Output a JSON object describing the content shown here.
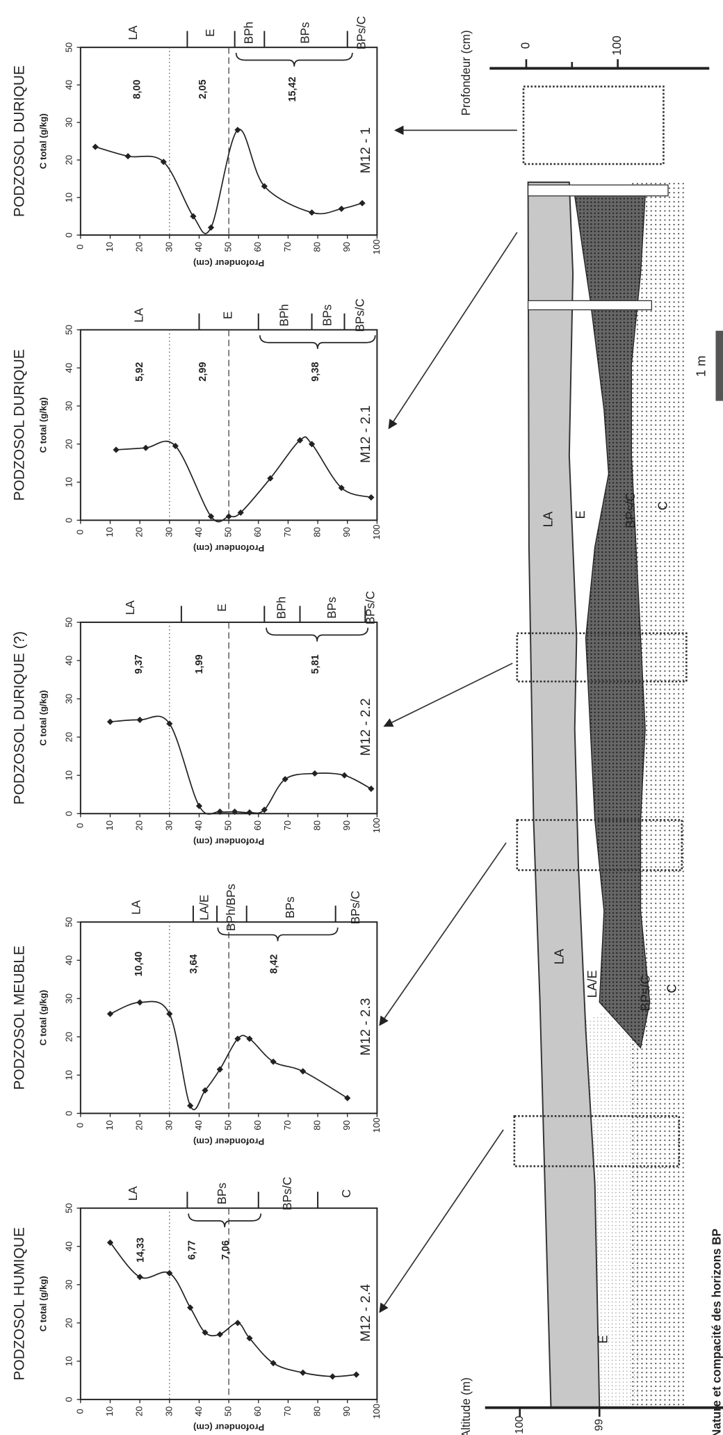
{
  "chart_data": [
    {
      "type": "line",
      "title": "PODZOSOL DURIQUE",
      "annotation": "M12 - 1",
      "xlabel": "Profondeur (cm)",
      "ylabel": "C total (g/kg)",
      "x": [
        5,
        16,
        28,
        38,
        44,
        53,
        62,
        78,
        88,
        95
      ],
      "series": [
        {
          "color": "#222222",
          "values": [
            23.5,
            21,
            19.5,
            5,
            2,
            28,
            13,
            6,
            7,
            8.5
          ]
        }
      ],
      "xlim": [
        0,
        100
      ],
      "ylim": [
        0,
        50
      ],
      "xticks": [
        0,
        10,
        20,
        30,
        40,
        50,
        60,
        70,
        80,
        90,
        100
      ],
      "yticks": [
        0,
        10,
        20,
        30,
        40,
        50
      ],
      "horizons": [
        "LA",
        "E",
        "BPh",
        "BPs",
        "BPs/C"
      ],
      "horizon_bounds": [
        0,
        36,
        52,
        62,
        90,
        100
      ],
      "means": [
        "8,00",
        "2,05",
        "15,42"
      ],
      "reference_lines": [
        30,
        50
      ]
    },
    {
      "type": "line",
      "title": "PODZOSOL DURIQUE",
      "annotation": "M12 - 2.1",
      "xlabel": "Profondeur (cm)",
      "ylabel": "C total (g/kg)",
      "x": [
        12,
        22,
        32,
        44,
        50,
        54,
        64,
        74,
        78,
        88,
        98
      ],
      "series": [
        {
          "color": "#222222",
          "values": [
            18.5,
            19,
            19.5,
            1,
            1,
            2,
            11,
            21,
            20,
            8.5,
            6
          ]
        }
      ],
      "xlim": [
        0,
        100
      ],
      "ylim": [
        0,
        50
      ],
      "xticks": [
        0,
        10,
        20,
        30,
        40,
        50,
        60,
        70,
        80,
        90,
        100
      ],
      "yticks": [
        0,
        10,
        20,
        30,
        40,
        50
      ],
      "horizons": [
        "LA",
        "E",
        "BPh",
        "BPs",
        "BPs/C"
      ],
      "horizon_bounds": [
        0,
        40,
        60,
        78,
        89,
        100
      ],
      "means": [
        "5,92",
        "2,99",
        "9,38"
      ],
      "reference_lines": [
        30,
        50
      ]
    },
    {
      "type": "line",
      "title": "PODZOSOL DURIQUE (?)",
      "annotation": "M12 - 2.2",
      "xlabel": "Profondeur (cm)",
      "ylabel": "C total (g/kg)",
      "x": [
        10,
        20,
        30,
        40,
        47,
        52,
        57,
        62,
        69,
        79,
        89,
        98
      ],
      "series": [
        {
          "color": "#222222",
          "values": [
            24,
            24.5,
            23.5,
            2,
            0.5,
            0.5,
            0.3,
            1,
            9,
            10.5,
            10,
            6.5
          ]
        }
      ],
      "xlim": [
        0,
        100
      ],
      "ylim": [
        0,
        50
      ],
      "xticks": [
        0,
        10,
        20,
        30,
        40,
        50,
        60,
        70,
        80,
        90,
        100
      ],
      "yticks": [
        0,
        10,
        20,
        30,
        40,
        50
      ],
      "horizons": [
        "LA",
        "E",
        "BPh",
        "BPs",
        "BPs/C"
      ],
      "horizon_bounds": [
        0,
        34,
        62,
        74,
        96,
        100
      ],
      "means": [
        "9,37",
        "1,99",
        "5,81"
      ],
      "reference_lines": [
        30,
        50
      ]
    },
    {
      "type": "line",
      "title": "PODZOSOL MEUBLE",
      "annotation": "M12 - 2.3",
      "xlabel": "Profondeur (cm)",
      "ylabel": "C total (g/kg)",
      "x": [
        10,
        20,
        30,
        37,
        42,
        47,
        53,
        57,
        65,
        75,
        90
      ],
      "series": [
        {
          "color": "#222222",
          "values": [
            26,
            29,
            26,
            2,
            6,
            11.5,
            19.5,
            19.5,
            13.5,
            11,
            4
          ]
        }
      ],
      "xlim": [
        0,
        100
      ],
      "ylim": [
        0,
        50
      ],
      "xticks": [
        0,
        10,
        20,
        30,
        40,
        50,
        60,
        70,
        80,
        90,
        100
      ],
      "yticks": [
        0,
        10,
        20,
        30,
        40,
        50
      ],
      "horizons": [
        "LA",
        "LA/E",
        "BPh/BPs",
        "BPs",
        "BPs/C"
      ],
      "horizon_bounds": [
        0,
        38,
        46,
        56,
        86,
        100
      ],
      "means": [
        "10,40",
        "3,64",
        "8,42"
      ],
      "reference_lines": [
        30,
        50
      ]
    },
    {
      "type": "line",
      "title": "PODZOSOL HUMIQUE",
      "annotation": "M12 - 2.4",
      "xlabel": "Profondeur (cm)",
      "ylabel": "C total (g/kg)",
      "x": [
        10,
        20,
        30,
        37,
        42,
        47,
        53,
        57,
        65,
        75,
        85,
        93
      ],
      "series": [
        {
          "color": "#222222",
          "values": [
            41,
            32,
            33,
            24,
            17.5,
            17,
            20,
            16,
            9.5,
            7,
            6,
            6.5
          ]
        }
      ],
      "xlim": [
        0,
        100
      ],
      "ylim": [
        0,
        50
      ],
      "xticks": [
        0,
        10,
        20,
        30,
        40,
        50,
        60,
        70,
        80,
        90,
        100
      ],
      "yticks": [
        0,
        10,
        20,
        30,
        40,
        50
      ],
      "horizons": [
        "LA",
        "BPs",
        "BPs/C",
        "C"
      ],
      "horizon_bounds": [
        0,
        36,
        60,
        80,
        100
      ],
      "means": [
        "14,33",
        "6,77",
        "7,06"
      ],
      "reference_lines": [
        30,
        50
      ]
    }
  ],
  "diagram": {
    "depth_label": "Profondeur (cm)",
    "depth_ticks": [
      "0",
      "100"
    ],
    "altitude_label": "Altitude (m)",
    "altitude_ticks": [
      "100",
      "99"
    ],
    "horizon_labels": [
      "LA",
      "E",
      "BPs/C",
      "C",
      "LA",
      "LA/E",
      "BPs/C",
      "C",
      "E"
    ],
    "scale_bar": "1 m",
    "caption": "Nature et compacité des horizons BP"
  }
}
